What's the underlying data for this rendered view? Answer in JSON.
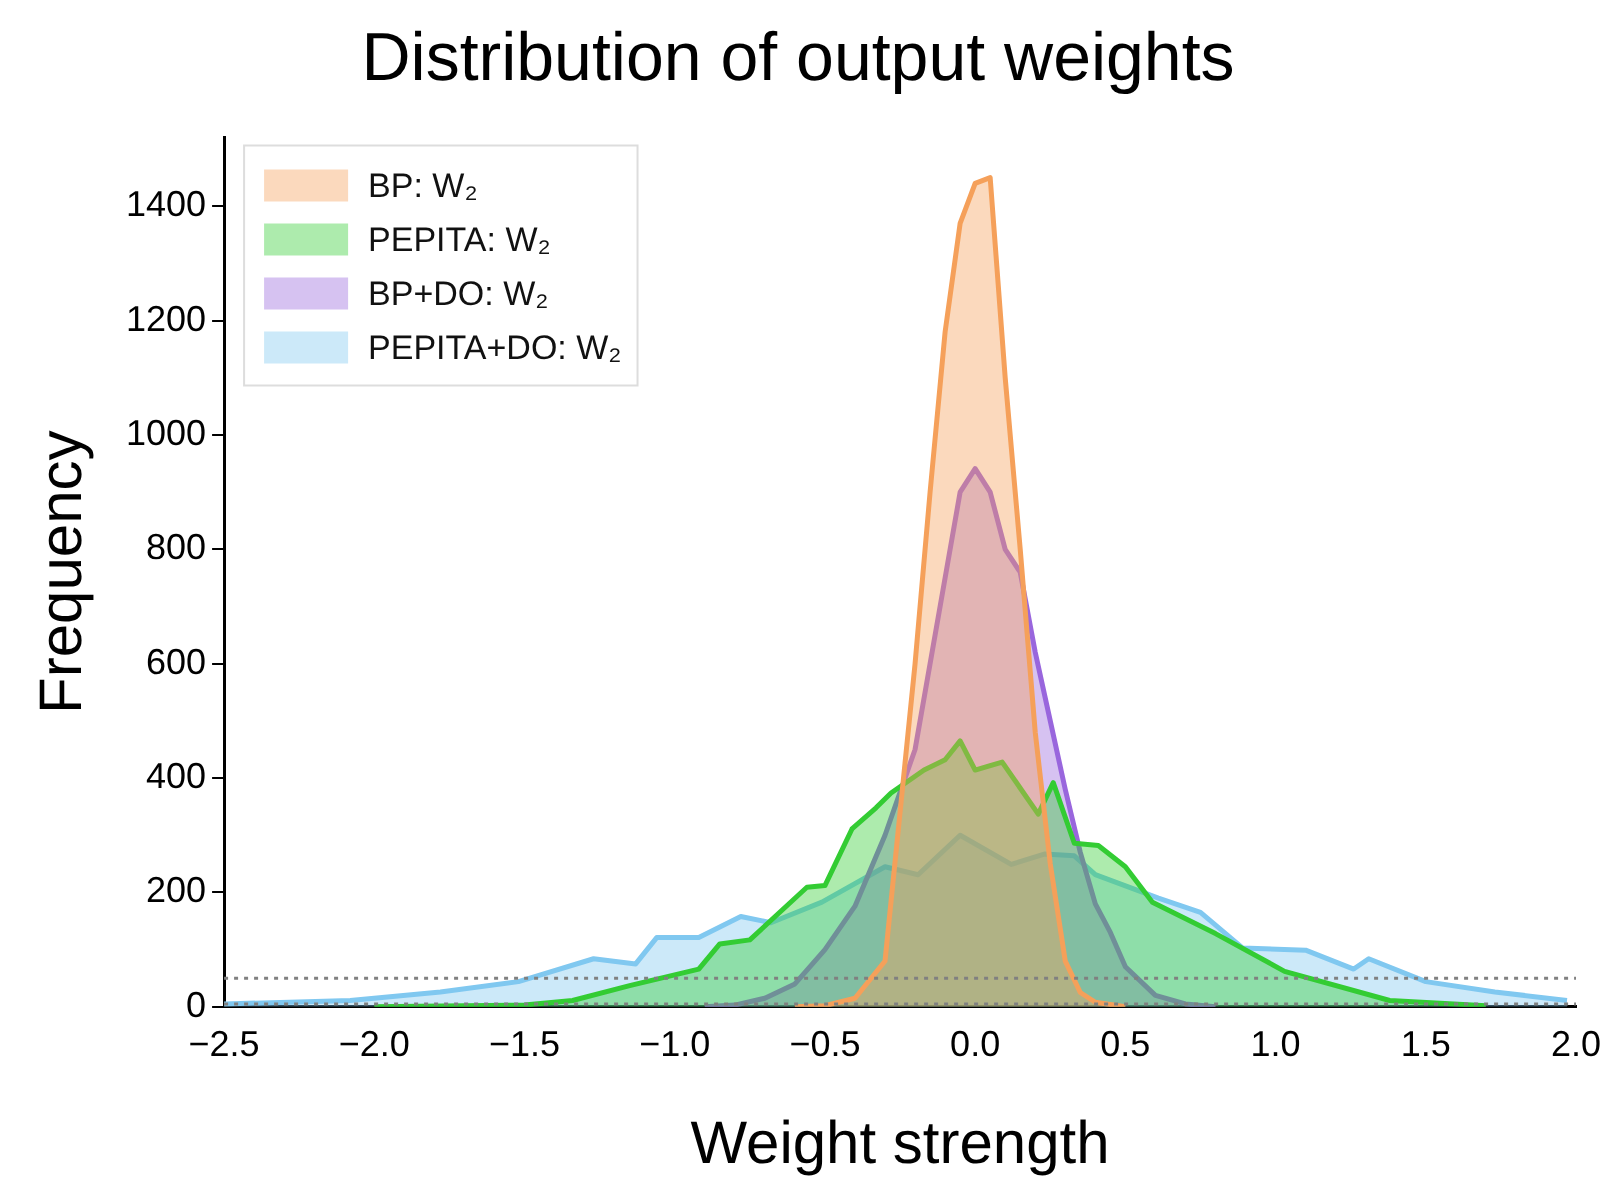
{
  "chart_data": {
    "type": "area",
    "title": "Distribution of output weights",
    "xlabel": "Weight strength",
    "ylabel": "Frequency",
    "xlim": [
      -2.5,
      2.0
    ],
    "xticks": [
      {
        "value": -2.5,
        "label": "−2.5"
      },
      {
        "value": -2.0,
        "label": "−2.0"
      },
      {
        "value": -1.5,
        "label": "−1.5"
      },
      {
        "value": -1.0,
        "label": "−1.0"
      },
      {
        "value": -0.5,
        "label": "−0.5"
      },
      {
        "value": 0,
        "label": "0.0"
      },
      {
        "value": 0.5,
        "label": "0.5"
      },
      {
        "value": 1.0,
        "label": "1.0"
      },
      {
        "value": 1.5,
        "label": "1.5"
      },
      {
        "value": 2.0,
        "label": "2.0"
      }
    ],
    "ylim": [
      0,
      1520
    ],
    "yticks": [
      0,
      200,
      400,
      600,
      800,
      1000,
      1200,
      1400
    ],
    "grid": false,
    "legend": "top left",
    "ref_lines": [
      {
        "axis": "y",
        "value": 50,
        "color": "#808080",
        "line_style": "dotted"
      },
      {
        "axis": "y",
        "value": 5,
        "color": "#808080",
        "line_style": "dotted"
      }
    ],
    "series": [
      {
        "name": "PEPITA+DO: W₂",
        "color": "#80c8f0",
        "x": [
          -2.5,
          -2.08,
          -1.78,
          -1.52,
          -1.27,
          -1.13,
          -1.06,
          -0.92,
          -0.78,
          -0.68,
          -0.51,
          -0.3,
          -0.19,
          -0.05,
          0.12,
          0.23,
          0.33,
          0.4,
          0.61,
          0.75,
          0.89,
          1.1,
          1.26,
          1.31,
          1.5,
          1.73,
          1.97
        ],
        "values": [
          5,
          11,
          26,
          44,
          84,
          75,
          121,
          121,
          158,
          147,
          183,
          245,
          231,
          300,
          249,
          267,
          264,
          231,
          190,
          165,
          103,
          99,
          66,
          84,
          44,
          26,
          11
        ]
      },
      {
        "name": "BP+DO: W₂",
        "color": "#9966dd",
        "x": [
          -0.9,
          -0.8,
          -0.7,
          -0.6,
          -0.5,
          -0.4,
          -0.3,
          -0.2,
          -0.1,
          -0.05,
          0,
          0.05,
          0.1,
          0.15,
          0.2,
          0.25,
          0.3,
          0.35,
          0.4,
          0.45,
          0.5,
          0.6,
          0.7,
          0.8
        ],
        "values": [
          0,
          3,
          15,
          40,
          100,
          176,
          300,
          450,
          750,
          900,
          941,
          900,
          800,
          760,
          620,
          500,
          380,
          270,
          180,
          130,
          70,
          20,
          5,
          0
        ]
      },
      {
        "name": "PEPITA: W₂",
        "color": "#33cc33",
        "x": [
          -2.0,
          -1.5,
          -1.34,
          -1.15,
          -0.92,
          -0.85,
          -0.75,
          -0.56,
          -0.5,
          -0.41,
          -0.33,
          -0.28,
          -0.17,
          -0.1,
          -0.05,
          0,
          0.09,
          0.21,
          0.26,
          0.33,
          0.41,
          0.5,
          0.59,
          0.8,
          1.03,
          1.38,
          1.7
        ],
        "values": [
          0,
          3,
          11,
          37,
          66,
          110,
          117,
          209,
          212,
          311,
          348,
          374,
          414,
          432,
          465,
          414,
          428,
          337,
          392,
          286,
          282,
          245,
          183,
          128,
          62,
          11,
          2
        ]
      },
      {
        "name": "BP: W₂",
        "color": "#f5a05a",
        "x": [
          -0.6,
          -0.5,
          -0.4,
          -0.3,
          -0.2,
          -0.15,
          -0.1,
          -0.05,
          0,
          0.05,
          0.1,
          0.15,
          0.2,
          0.25,
          0.3,
          0.35,
          0.4,
          0.5
        ],
        "values": [
          0,
          2,
          15,
          80,
          600,
          900,
          1180,
          1370,
          1440,
          1450,
          1100,
          800,
          480,
          250,
          80,
          25,
          8,
          0
        ]
      }
    ]
  }
}
